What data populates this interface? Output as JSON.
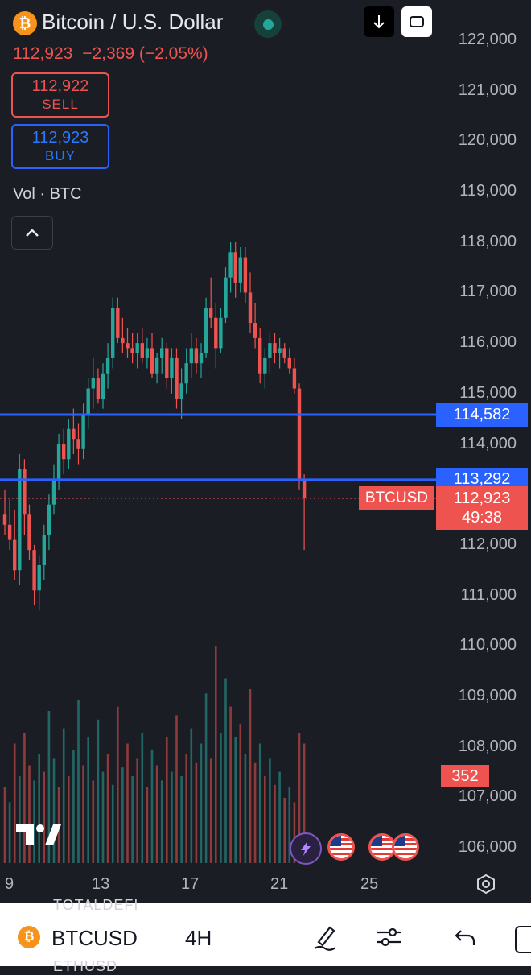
{
  "header": {
    "coin_glyph": "₿",
    "title": "Bitcoin / U.S. Dollar",
    "last_price": "112,923",
    "change": "−2,369",
    "change_pct": "(−2.05%)",
    "status_color": "#26a69a"
  },
  "trade": {
    "sell_price": "112,922",
    "sell_label": "SELL",
    "buy_price": "112,923",
    "buy_label": "BUY"
  },
  "indicator": {
    "label": "Vol · BTC"
  },
  "icons": {
    "download": "arrow-down-icon",
    "fullscreen": "fullscreen-icon",
    "collapse": "chevron-up-icon",
    "settings": "hexagon-settings-icon",
    "brush": "pen-icon",
    "adjust": "sliders-icon",
    "undo": "undo-icon"
  },
  "chart_data": {
    "type": "candlestick",
    "symbol": "BTCUSD",
    "interval": "4H",
    "y_ticks": [
      "122,000",
      "121,000",
      "120,000",
      "119,000",
      "118,000",
      "117,000",
      "116,000",
      "115,000",
      "114,000",
      "112,000",
      "111,000",
      "110,000",
      "109,000",
      "108,000",
      "107,000",
      "106,000"
    ],
    "y_range": [
      105800,
      122300
    ],
    "x_ticks": [
      "9",
      "13",
      "17",
      "21",
      "25"
    ],
    "horizontal_lines": [
      {
        "price": 114582,
        "label": "114,582",
        "color": "#2962ff"
      },
      {
        "price": 113292,
        "label": "113,292",
        "color": "#2962ff"
      }
    ],
    "current_price": {
      "price": 112923,
      "label": "112,923",
      "countdown": "49:38",
      "symbol_tag": "BTCUSD",
      "color": "#ef5350"
    },
    "volume_tag": "352",
    "colors": {
      "up": "#26a69a",
      "down": "#ef5350"
    },
    "candles": [
      [
        112600,
        113100,
        112200,
        112400
      ],
      [
        112400,
        112900,
        111900,
        112100
      ],
      [
        112100,
        112700,
        111300,
        111500
      ],
      [
        111500,
        113800,
        111200,
        113500
      ],
      [
        113500,
        113700,
        112200,
        112600
      ],
      [
        112600,
        112800,
        111700,
        111900
      ],
      [
        111900,
        112000,
        110800,
        111100
      ],
      [
        111100,
        111800,
        110700,
        111600
      ],
      [
        111600,
        112400,
        111300,
        112200
      ],
      [
        112200,
        113000,
        111900,
        112800
      ],
      [
        112800,
        113600,
        112600,
        113300
      ],
      [
        113300,
        114200,
        113100,
        114000
      ],
      [
        114000,
        114300,
        113400,
        113700
      ],
      [
        113700,
        114500,
        113500,
        114300
      ],
      [
        114300,
        114700,
        113800,
        114100
      ],
      [
        114100,
        114400,
        113600,
        113900
      ],
      [
        113900,
        114800,
        113700,
        114600
      ],
      [
        114600,
        115300,
        114300,
        115100
      ],
      [
        115100,
        115700,
        114700,
        115300
      ],
      [
        115300,
        115500,
        114800,
        114900
      ],
      [
        114900,
        115600,
        114700,
        115400
      ],
      [
        115400,
        116000,
        115100,
        115700
      ],
      [
        115700,
        116900,
        115500,
        116700
      ],
      [
        116700,
        116900,
        116000,
        116100
      ],
      [
        116100,
        116500,
        115800,
        116000
      ],
      [
        116000,
        116300,
        115700,
        115900
      ],
      [
        115900,
        116200,
        115600,
        115800
      ],
      [
        115800,
        116200,
        115500,
        116000
      ],
      [
        116000,
        116300,
        115600,
        115700
      ],
      [
        115700,
        116100,
        115500,
        115900
      ],
      [
        115900,
        116200,
        115300,
        115400
      ],
      [
        115400,
        115800,
        115200,
        115700
      ],
      [
        115700,
        116100,
        115400,
        115900
      ],
      [
        115900,
        116000,
        115100,
        115300
      ],
      [
        115300,
        115900,
        115000,
        115700
      ],
      [
        115700,
        115900,
        114700,
        114900
      ],
      [
        114900,
        115500,
        114500,
        115200
      ],
      [
        115200,
        115900,
        115000,
        115600
      ],
      [
        115600,
        116200,
        115300,
        115900
      ],
      [
        115900,
        116100,
        115400,
        115600
      ],
      [
        115600,
        116000,
        115300,
        115800
      ],
      [
        115800,
        116900,
        115700,
        116700
      ],
      [
        116700,
        117300,
        116300,
        116500
      ],
      [
        116500,
        116800,
        115500,
        115900
      ],
      [
        115900,
        116700,
        115800,
        116500
      ],
      [
        116500,
        117500,
        116400,
        117300
      ],
      [
        117300,
        118000,
        117000,
        117800
      ],
      [
        117800,
        118000,
        116900,
        117200
      ],
      [
        117200,
        117900,
        117000,
        117700
      ],
      [
        117700,
        117900,
        116800,
        117000
      ],
      [
        117000,
        117400,
        116200,
        116400
      ],
      [
        116400,
        116800,
        115900,
        116100
      ],
      [
        116100,
        116300,
        115200,
        115400
      ],
      [
        115400,
        115900,
        115100,
        115700
      ],
      [
        115700,
        116200,
        115400,
        116000
      ],
      [
        116000,
        116200,
        115600,
        115800
      ],
      [
        115800,
        116100,
        115500,
        115900
      ],
      [
        115900,
        116000,
        115600,
        115700
      ],
      [
        115700,
        115900,
        115400,
        115500
      ],
      [
        115500,
        115700,
        115000,
        115100
      ],
      [
        115100,
        115200,
        113100,
        113300
      ],
      [
        113300,
        113400,
        111900,
        112923
      ]
    ],
    "volumes": [
      [
        35,
        "down"
      ],
      [
        28,
        "up"
      ],
      [
        55,
        "down"
      ],
      [
        40,
        "up"
      ],
      [
        60,
        "down"
      ],
      [
        45,
        "down"
      ],
      [
        38,
        "up"
      ],
      [
        50,
        "up"
      ],
      [
        42,
        "down"
      ],
      [
        70,
        "up"
      ],
      [
        48,
        "up"
      ],
      [
        35,
        "down"
      ],
      [
        62,
        "up"
      ],
      [
        40,
        "down"
      ],
      [
        52,
        "up"
      ],
      [
        75,
        "up"
      ],
      [
        45,
        "down"
      ],
      [
        58,
        "up"
      ],
      [
        38,
        "down"
      ],
      [
        66,
        "up"
      ],
      [
        42,
        "up"
      ],
      [
        50,
        "down"
      ],
      [
        36,
        "up"
      ],
      [
        72,
        "down"
      ],
      [
        44,
        "up"
      ],
      [
        55,
        "down"
      ],
      [
        40,
        "up"
      ],
      [
        48,
        "down"
      ],
      [
        60,
        "up"
      ],
      [
        35,
        "down"
      ],
      [
        52,
        "up"
      ],
      [
        45,
        "down"
      ],
      [
        38,
        "up"
      ],
      [
        58,
        "down"
      ],
      [
        42,
        "up"
      ],
      [
        68,
        "down"
      ],
      [
        40,
        "up"
      ],
      [
        50,
        "down"
      ],
      [
        62,
        "up"
      ],
      [
        46,
        "down"
      ],
      [
        55,
        "up"
      ],
      [
        78,
        "up"
      ],
      [
        48,
        "down"
      ],
      [
        100,
        "down"
      ],
      [
        60,
        "up"
      ],
      [
        85,
        "up"
      ],
      [
        72,
        "down"
      ],
      [
        58,
        "up"
      ],
      [
        64,
        "down"
      ],
      [
        50,
        "up"
      ],
      [
        80,
        "down"
      ],
      [
        46,
        "down"
      ],
      [
        55,
        "up"
      ],
      [
        40,
        "down"
      ],
      [
        48,
        "up"
      ],
      [
        36,
        "down"
      ],
      [
        42,
        "up"
      ],
      [
        30,
        "down"
      ],
      [
        35,
        "up"
      ],
      [
        28,
        "down"
      ],
      [
        60,
        "down"
      ],
      [
        55,
        "down"
      ]
    ]
  },
  "bottom_bar": {
    "coin_glyph": "₿",
    "symbol": "BTCUSD",
    "interval": "4H",
    "ghost_top": "TOTALDEFI",
    "ghost_bottom": "ETHUSD"
  }
}
